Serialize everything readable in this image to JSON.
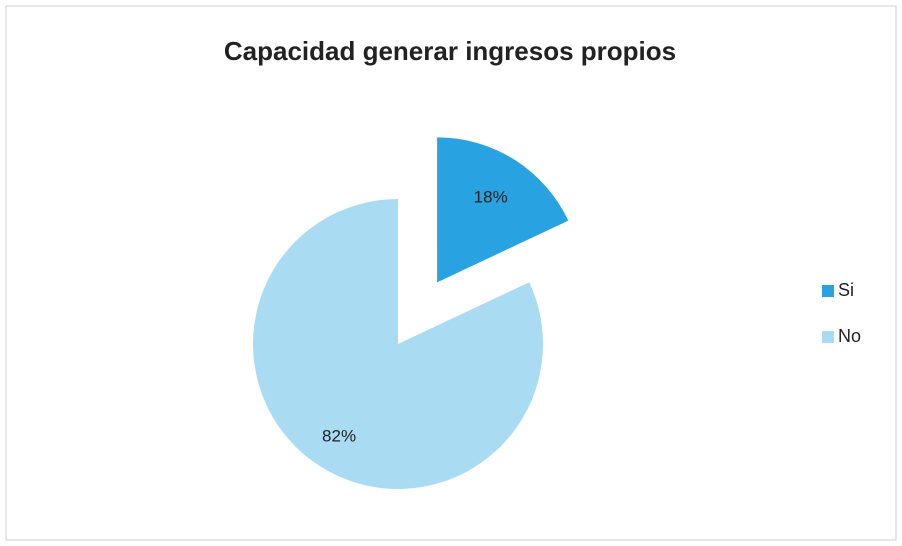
{
  "chart_data": {
    "type": "pie",
    "title": "Capacidad generar ingresos propios",
    "categories": [
      "Si",
      "No"
    ],
    "values": [
      18,
      82
    ],
    "value_labels": [
      "18%",
      "82%"
    ],
    "colors": [
      "#29a2e2",
      "#a9dcf3"
    ],
    "legend": "right"
  }
}
